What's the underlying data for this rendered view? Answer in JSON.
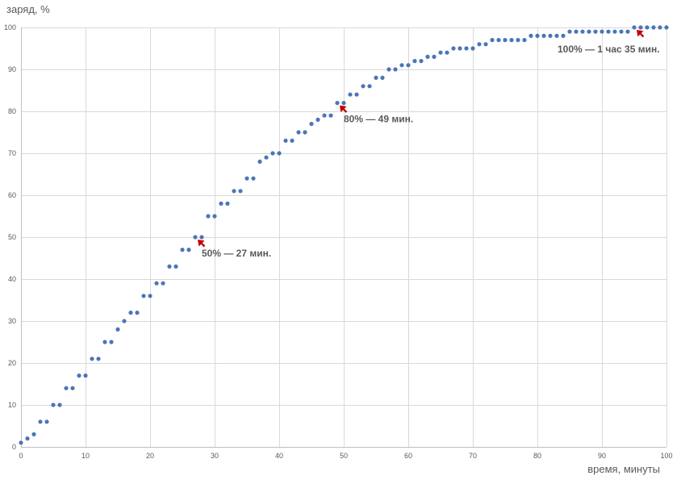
{
  "chart_data": {
    "type": "scatter",
    "ylabel": "заряд, %",
    "xlabel": "время, минуты",
    "xlim": [
      0,
      100
    ],
    "ylim": [
      0,
      100
    ],
    "x_ticks": [
      0,
      10,
      20,
      30,
      40,
      50,
      60,
      70,
      80,
      90,
      100
    ],
    "y_ticks": [
      0,
      10,
      20,
      30,
      40,
      50,
      60,
      70,
      80,
      90,
      100
    ],
    "grid": true,
    "colors": {
      "points": "#4a76b8",
      "arrows": "#c00000",
      "grid": "#d9d9d9"
    },
    "series": [
      {
        "x": [
          0,
          1,
          2,
          3,
          4,
          5,
          6,
          7,
          8,
          9,
          10,
          11,
          12,
          13,
          14,
          15,
          16,
          17,
          18,
          19,
          20,
          21,
          22,
          23,
          24,
          25,
          26,
          27,
          28,
          29,
          30,
          31,
          32,
          33,
          34,
          35,
          36,
          37,
          38,
          39,
          40,
          41,
          42,
          43,
          44,
          45,
          46,
          47,
          48,
          49,
          50,
          51,
          52,
          53,
          54,
          55,
          56,
          57,
          58,
          59,
          60,
          61,
          62,
          63,
          64,
          65,
          66,
          67,
          68,
          69,
          70,
          71,
          72,
          73,
          74,
          75,
          76,
          77,
          78,
          79,
          80,
          81,
          82,
          83,
          84,
          85,
          86,
          87,
          88,
          89,
          90,
          91,
          92,
          93,
          94,
          95,
          96,
          97,
          98,
          99,
          100
        ],
        "y": [
          1,
          2,
          3,
          6,
          6,
          10,
          10,
          14,
          14,
          17,
          17,
          21,
          21,
          25,
          25,
          28,
          30,
          32,
          32,
          36,
          36,
          39,
          39,
          43,
          43,
          47,
          47,
          50,
          50,
          55,
          55,
          58,
          58,
          61,
          61,
          64,
          64,
          68,
          69,
          70,
          70,
          73,
          73,
          75,
          75,
          77,
          78,
          79,
          79,
          82,
          82,
          84,
          84,
          86,
          86,
          88,
          88,
          90,
          90,
          91,
          91,
          92,
          92,
          93,
          93,
          94,
          94,
          95,
          95,
          95,
          95,
          96,
          96,
          97,
          97,
          97,
          97,
          97,
          97,
          98,
          98,
          98,
          98,
          98,
          98,
          99,
          99,
          99,
          99,
          99,
          99,
          99,
          99,
          99,
          99,
          100,
          100,
          100,
          100,
          100,
          100
        ]
      }
    ],
    "annotations": [
      {
        "text": "50% — 27 мин.",
        "x": 27,
        "y": 50
      },
      {
        "text": "80% — 49 мин.",
        "x": 49,
        "y": 82
      },
      {
        "text": "100% — 1 час 35 мин.",
        "x": 95,
        "y": 100
      }
    ]
  }
}
